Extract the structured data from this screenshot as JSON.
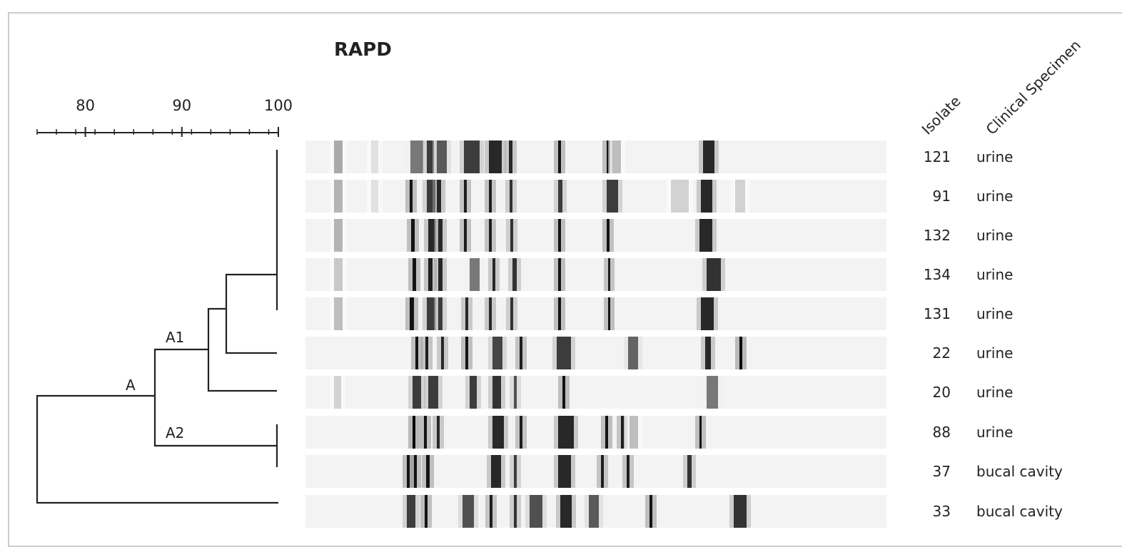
{
  "title": "RAPD",
  "scale": {
    "ticks": [
      80,
      90,
      100
    ]
  },
  "headers": {
    "isolate": "Isolate",
    "specimen": "Clinical Specimen"
  },
  "clusters": {
    "a": "A",
    "a1": "A1",
    "a2": "A2"
  },
  "rows": [
    {
      "isolate": "121",
      "specimen": "urine"
    },
    {
      "isolate": "91",
      "specimen": "urine"
    },
    {
      "isolate": "132",
      "specimen": "urine"
    },
    {
      "isolate": "134",
      "specimen": "urine"
    },
    {
      "isolate": "131",
      "specimen": "urine"
    },
    {
      "isolate": "22",
      "specimen": "urine"
    },
    {
      "isolate": "20",
      "specimen": "urine"
    },
    {
      "isolate": "88",
      "specimen": "urine"
    },
    {
      "isolate": "37",
      "specimen": "bucal cavity"
    },
    {
      "isolate": "33",
      "specimen": "bucal cavity"
    }
  ]
}
